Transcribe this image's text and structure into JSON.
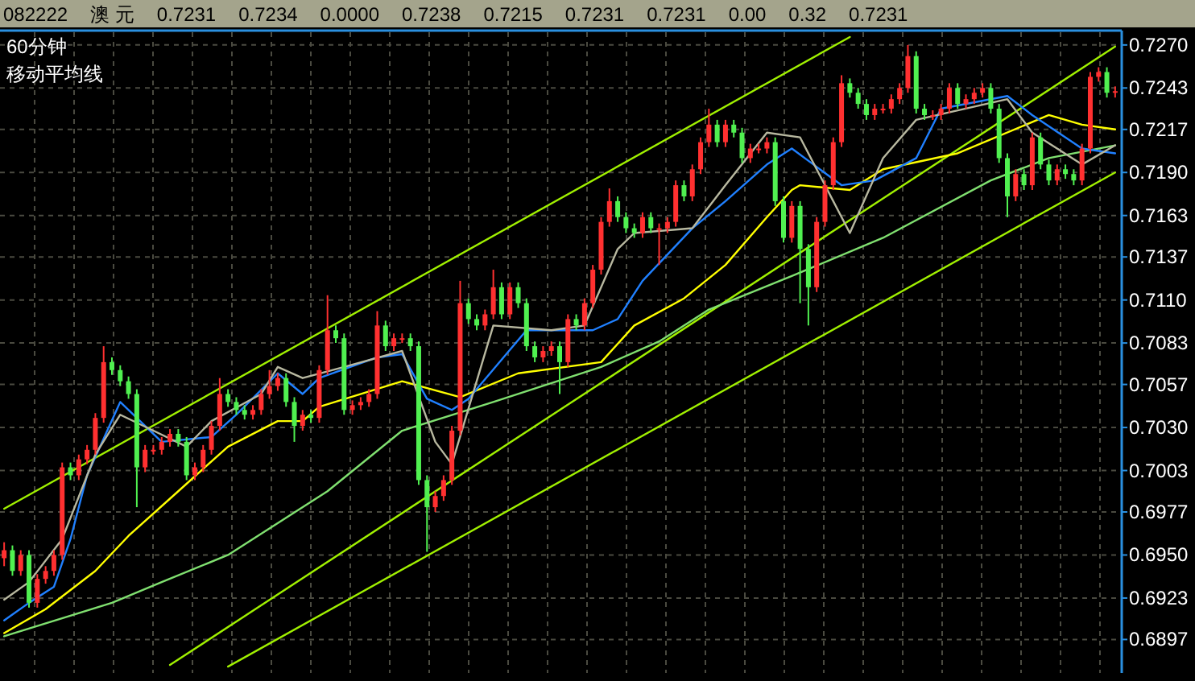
{
  "chart_data": {
    "type": "candlestick",
    "title": "60分钟",
    "subtitle": "移动平均线",
    "annotations": [
      "082222",
      "澳 元",
      "0.7231",
      "0.7234",
      "0.0000",
      "0.7238",
      "0.7215",
      "0.7231",
      "0.7231",
      "0.00",
      "0.32",
      "0.7231"
    ],
    "categories": [
      null,
      null,
      null,
      null,
      null,
      null,
      null,
      null,
      null,
      null,
      null,
      null,
      null,
      null,
      null,
      null,
      null,
      null,
      null,
      null,
      null,
      null,
      null,
      null,
      null,
      null,
      null,
      null,
      null,
      null,
      null,
      null,
      null,
      null,
      null,
      null,
      null,
      null,
      null,
      null,
      null,
      null,
      null,
      null,
      null,
      null,
      null,
      null,
      null,
      null,
      null,
      null,
      null,
      null,
      null,
      null,
      null,
      null,
      null,
      null,
      null,
      null,
      null,
      null,
      null,
      null,
      null,
      null,
      null,
      null,
      null,
      null,
      null,
      null,
      null,
      null,
      null,
      null,
      null,
      null,
      null,
      null,
      null,
      null,
      null,
      null,
      null,
      null,
      null,
      null,
      null,
      null,
      null,
      null,
      null,
      null,
      null,
      null,
      null,
      null,
      null,
      null,
      null,
      null,
      null,
      null,
      null,
      null,
      null,
      null,
      null,
      null,
      null,
      null,
      null,
      null,
      null,
      null,
      null,
      null,
      null,
      null,
      null,
      null,
      null,
      null,
      null,
      null,
      null,
      null,
      null,
      null,
      null,
      null,
      null
    ],
    "ohlc": [
      [
        0.6948,
        0.6958,
        0.6943,
        0.6953
      ],
      [
        0.6953,
        0.6956,
        0.6937,
        0.694
      ],
      [
        0.694,
        0.6953,
        0.6937,
        0.695
      ],
      [
        0.695,
        0.6953,
        0.6917,
        0.692
      ],
      [
        0.692,
        0.6938,
        0.6917,
        0.6935
      ],
      [
        0.6935,
        0.6943,
        0.6932,
        0.694
      ],
      [
        0.694,
        0.6953,
        0.6937,
        0.695
      ],
      [
        0.695,
        0.7008,
        0.6947,
        0.7005
      ],
      [
        0.7005,
        0.7008,
        0.6997,
        0.7
      ],
      [
        0.7,
        0.7013,
        0.6997,
        0.701
      ],
      [
        0.701,
        0.7019,
        0.7007,
        0.7016
      ],
      [
        0.7016,
        0.7039,
        0.7013,
        0.7036
      ],
      [
        0.7036,
        0.7081,
        0.7033,
        0.7071
      ],
      [
        0.7071,
        0.7074,
        0.7063,
        0.7066
      ],
      [
        0.7066,
        0.7069,
        0.7056,
        0.7059
      ],
      [
        0.7059,
        0.7062,
        0.7048,
        0.7051
      ],
      [
        0.7051,
        0.7054,
        0.698,
        0.7005
      ],
      [
        0.7005,
        0.7019,
        0.7002,
        0.7016
      ],
      [
        0.7016,
        0.7019,
        0.7013,
        0.7016
      ],
      [
        0.7016,
        0.7024,
        0.7013,
        0.7021
      ],
      [
        0.7021,
        0.7029,
        0.7018,
        0.7026
      ],
      [
        0.7026,
        0.7029,
        0.7018,
        0.7021
      ],
      [
        0.7021,
        0.7024,
        0.6997,
        0.7
      ],
      [
        0.7,
        0.7008,
        0.6997,
        0.7005
      ],
      [
        0.7005,
        0.7019,
        0.7002,
        0.7016
      ],
      [
        0.7016,
        0.7034,
        0.7013,
        0.7031
      ],
      [
        0.7031,
        0.7061,
        0.7028,
        0.7051
      ],
      [
        0.7051,
        0.7054,
        0.7043,
        0.7046
      ],
      [
        0.7046,
        0.7049,
        0.7038,
        0.7041
      ],
      [
        0.7041,
        0.7044,
        0.7035,
        0.7038
      ],
      [
        0.7038,
        0.7044,
        0.7035,
        0.7041
      ],
      [
        0.7041,
        0.7054,
        0.7038,
        0.7051
      ],
      [
        0.7051,
        0.7066,
        0.7048,
        0.7056
      ],
      [
        0.7056,
        0.7064,
        0.7053,
        0.7061
      ],
      [
        0.7061,
        0.7064,
        0.7043,
        0.7046
      ],
      [
        0.7046,
        0.7049,
        0.7021,
        0.7031
      ],
      [
        0.7031,
        0.7041,
        0.7028,
        0.7038
      ],
      [
        0.7038,
        0.7041,
        0.7033,
        0.7036
      ],
      [
        0.7036,
        0.7069,
        0.7033,
        0.7066
      ],
      [
        0.7066,
        0.7113,
        0.7063,
        0.7091
      ],
      [
        0.7091,
        0.7094,
        0.7083,
        0.7086
      ],
      [
        0.7086,
        0.7089,
        0.7038,
        0.7041
      ],
      [
        0.7041,
        0.7047,
        0.7038,
        0.7044
      ],
      [
        0.7044,
        0.7049,
        0.7041,
        0.7046
      ],
      [
        0.7046,
        0.7054,
        0.7043,
        0.7051
      ],
      [
        0.7051,
        0.7103,
        0.7048,
        0.7094
      ],
      [
        0.7094,
        0.7097,
        0.7078,
        0.7081
      ],
      [
        0.7081,
        0.7089,
        0.7078,
        0.7086
      ],
      [
        0.7086,
        0.7089,
        0.7083,
        0.7086
      ],
      [
        0.7086,
        0.7089,
        0.7078,
        0.7081
      ],
      [
        0.7081,
        0.7084,
        0.6994,
        0.6997
      ],
      [
        0.6997,
        0.7,
        0.6952,
        0.698
      ],
      [
        0.698,
        0.699,
        0.6977,
        0.6987
      ],
      [
        0.6987,
        0.7,
        0.6984,
        0.6997
      ],
      [
        0.6997,
        0.7031,
        0.6994,
        0.7028
      ],
      [
        0.7028,
        0.7122,
        0.7025,
        0.7108
      ],
      [
        0.7108,
        0.7111,
        0.7095,
        0.7098
      ],
      [
        0.7098,
        0.7101,
        0.7091,
        0.7094
      ],
      [
        0.7094,
        0.7104,
        0.7091,
        0.7101
      ],
      [
        0.7101,
        0.7129,
        0.7098,
        0.7118
      ],
      [
        0.7118,
        0.7121,
        0.7098,
        0.7101
      ],
      [
        0.7101,
        0.7121,
        0.7098,
        0.7118
      ],
      [
        0.7118,
        0.7121,
        0.7105,
        0.7108
      ],
      [
        0.7108,
        0.7111,
        0.7078,
        0.7081
      ],
      [
        0.7081,
        0.7084,
        0.7071,
        0.7074
      ],
      [
        0.7074,
        0.7081,
        0.7071,
        0.7078
      ],
      [
        0.7078,
        0.7084,
        0.7075,
        0.7081
      ],
      [
        0.7081,
        0.7084,
        0.7051,
        0.7071
      ],
      [
        0.7071,
        0.7101,
        0.7068,
        0.7098
      ],
      [
        0.7098,
        0.7101,
        0.7091,
        0.7094
      ],
      [
        0.7094,
        0.7111,
        0.7091,
        0.7108
      ],
      [
        0.7108,
        0.7132,
        0.7105,
        0.7129
      ],
      [
        0.7129,
        0.7162,
        0.7126,
        0.7159
      ],
      [
        0.7159,
        0.718,
        0.7156,
        0.7172
      ],
      [
        0.7172,
        0.7175,
        0.7159,
        0.7162
      ],
      [
        0.7162,
        0.7165,
        0.7152,
        0.7155
      ],
      [
        0.7155,
        0.7158,
        0.7149,
        0.7152
      ],
      [
        0.7152,
        0.7165,
        0.7149,
        0.7162
      ],
      [
        0.7162,
        0.7165,
        0.7152,
        0.7155
      ],
      [
        0.7155,
        0.7158,
        0.7132,
        0.7155
      ],
      [
        0.7155,
        0.7162,
        0.7152,
        0.7159
      ],
      [
        0.7159,
        0.7185,
        0.7156,
        0.7182
      ],
      [
        0.7182,
        0.7185,
        0.7172,
        0.7175
      ],
      [
        0.7175,
        0.7195,
        0.7172,
        0.7192
      ],
      [
        0.7192,
        0.7212,
        0.7189,
        0.7209
      ],
      [
        0.7209,
        0.723,
        0.7206,
        0.722
      ],
      [
        0.722,
        0.7223,
        0.7206,
        0.7209
      ],
      [
        0.7209,
        0.7223,
        0.7206,
        0.722
      ],
      [
        0.722,
        0.7223,
        0.7212,
        0.7215
      ],
      [
        0.7215,
        0.7218,
        0.7196,
        0.7199
      ],
      [
        0.7199,
        0.7208,
        0.7196,
        0.7205
      ],
      [
        0.7205,
        0.7208,
        0.7202,
        0.7205
      ],
      [
        0.7205,
        0.7212,
        0.7202,
        0.7209
      ],
      [
        0.7209,
        0.7212,
        0.7169,
        0.7172
      ],
      [
        0.7172,
        0.7175,
        0.7146,
        0.7149
      ],
      [
        0.7149,
        0.7172,
        0.7146,
        0.7169
      ],
      [
        0.7169,
        0.7172,
        0.7108,
        0.7142
      ],
      [
        0.7142,
        0.7145,
        0.7094,
        0.7118
      ],
      [
        0.7118,
        0.7162,
        0.7115,
        0.7159
      ],
      [
        0.7159,
        0.7185,
        0.7156,
        0.7182
      ],
      [
        0.7182,
        0.7212,
        0.7179,
        0.7209
      ],
      [
        0.7209,
        0.7251,
        0.7206,
        0.7246
      ],
      [
        0.7246,
        0.7249,
        0.7237,
        0.724
      ],
      [
        0.724,
        0.7243,
        0.723,
        0.7233
      ],
      [
        0.7233,
        0.7236,
        0.7223,
        0.7226
      ],
      [
        0.7226,
        0.7233,
        0.7223,
        0.723
      ],
      [
        0.723,
        0.7233,
        0.7227,
        0.723
      ],
      [
        0.723,
        0.7239,
        0.7227,
        0.7236
      ],
      [
        0.7236,
        0.7246,
        0.7233,
        0.7243
      ],
      [
        0.7243,
        0.727,
        0.724,
        0.7263
      ],
      [
        0.7263,
        0.7266,
        0.7227,
        0.723
      ],
      [
        0.723,
        0.7233,
        0.7223,
        0.7226
      ],
      [
        0.7226,
        0.7229,
        0.7223,
        0.7226
      ],
      [
        0.7226,
        0.7233,
        0.7223,
        0.723
      ],
      [
        0.723,
        0.7246,
        0.7227,
        0.7243
      ],
      [
        0.7243,
        0.7246,
        0.723,
        0.7233
      ],
      [
        0.7233,
        0.7239,
        0.723,
        0.7236
      ],
      [
        0.7236,
        0.7243,
        0.7233,
        0.724
      ],
      [
        0.724,
        0.7246,
        0.7237,
        0.7243
      ],
      [
        0.7243,
        0.7246,
        0.7227,
        0.723
      ],
      [
        0.723,
        0.7233,
        0.7196,
        0.7199
      ],
      [
        0.7199,
        0.7202,
        0.7162,
        0.7175
      ],
      [
        0.7175,
        0.7192,
        0.7172,
        0.7189
      ],
      [
        0.7189,
        0.7192,
        0.7179,
        0.7182
      ],
      [
        0.7182,
        0.7215,
        0.7179,
        0.7212
      ],
      [
        0.7212,
        0.7215,
        0.7192,
        0.7195
      ],
      [
        0.7195,
        0.7198,
        0.7182,
        0.7185
      ],
      [
        0.7185,
        0.7195,
        0.7182,
        0.7192
      ],
      [
        0.7192,
        0.7195,
        0.7186,
        0.7189
      ],
      [
        0.7189,
        0.7192,
        0.7182,
        0.7185
      ],
      [
        0.7185,
        0.7208,
        0.7182,
        0.7205
      ],
      [
        0.7205,
        0.7253,
        0.7202,
        0.725
      ],
      [
        0.725,
        0.7256,
        0.7247,
        0.7253
      ],
      [
        0.7253,
        0.7256,
        0.7237,
        0.724
      ],
      [
        0.724,
        0.7244,
        0.7237,
        0.7241
      ]
    ],
    "colors": [
      "#ff3030",
      "#50f050",
      "#ff3030",
      "#50f050",
      "#ff3030",
      "#ff3030",
      "#ff3030",
      "#ff3030",
      "#50f050",
      "#ff3030",
      "#ff3030",
      "#ff3030",
      "#ff3030",
      "#50f050",
      "#50f050",
      "#50f050",
      "#50f050",
      "#ff3030",
      "#ff3030",
      "#ff3030",
      "#ff3030",
      "#50f050",
      "#50f050",
      "#ff3030",
      "#ff3030",
      "#ff3030",
      "#ff3030",
      "#50f050",
      "#50f050",
      "#50f050",
      "#ff3030",
      "#ff3030",
      "#ff3030",
      "#ff3030",
      "#50f050",
      "#50f050",
      "#ff3030",
      "#50f050",
      "#ff3030",
      "#ff3030",
      "#50f050",
      "#50f050",
      "#ff3030",
      "#ff3030",
      "#ff3030",
      "#ff3030",
      "#50f050",
      "#ff3030",
      "#ff3030",
      "#50f050",
      "#50f050",
      "#50f050",
      "#ff3030",
      "#ff3030",
      "#ff3030",
      "#ff3030",
      "#50f050",
      "#50f050",
      "#ff3030",
      "#ff3030",
      "#50f050",
      "#ff3030",
      "#50f050",
      "#50f050",
      "#50f050",
      "#ff3030",
      "#ff3030",
      "#50f050",
      "#ff3030",
      "#50f050",
      "#ff3030",
      "#ff3030",
      "#ff3030",
      "#ff3030",
      "#50f050",
      "#50f050",
      "#50f050",
      "#ff3030",
      "#50f050",
      "#ff3030",
      "#ff3030",
      "#ff3030",
      "#50f050",
      "#ff3030",
      "#ff3030",
      "#ff3030",
      "#50f050",
      "#ff3030",
      "#50f050",
      "#50f050",
      "#ff3030",
      "#ff3030",
      "#ff3030",
      "#50f050",
      "#50f050",
      "#ff3030",
      "#50f050",
      "#50f050",
      "#ff3030",
      "#ff3030",
      "#ff3030",
      "#ff3030",
      "#50f050",
      "#50f050",
      "#50f050",
      "#ff3030",
      "#ff3030",
      "#ff3030",
      "#ff3030",
      "#ff3030",
      "#50f050",
      "#50f050",
      "#ff3030",
      "#ff3030",
      "#ff3030",
      "#50f050",
      "#ff3030",
      "#ff3030",
      "#ff3030",
      "#50f050",
      "#50f050",
      "#50f050",
      "#ff3030",
      "#50f050",
      "#ff3030",
      "#50f050",
      "#50f050",
      "#ff3030",
      "#50f050",
      "#50f050",
      "#ff3030",
      "#ff3030",
      "#ff3030",
      "#50f050",
      "#ff3030"
    ],
    "series": [
      {
        "type": "line",
        "color": "#a0f000",
        "values": [
          0.6979,
          null,
          null,
          null,
          null,
          null,
          null,
          null,
          null,
          null,
          null,
          null,
          null,
          null,
          null,
          null,
          null,
          null,
          null,
          null,
          null,
          null,
          null,
          null,
          null,
          null,
          null,
          null,
          null,
          null,
          null,
          null,
          null,
          null,
          null,
          null,
          null,
          null,
          null,
          null,
          null,
          null,
          null,
          null,
          null,
          null,
          null,
          null,
          null,
          null,
          null,
          null,
          null,
          null,
          null,
          null,
          null,
          null,
          null,
          null,
          null,
          null,
          null,
          null,
          null,
          null,
          null,
          null,
          null,
          null,
          null,
          null,
          null,
          null,
          null,
          null,
          null,
          null,
          null,
          null,
          null,
          null,
          null,
          null,
          null,
          null,
          null,
          null,
          null,
          null,
          null,
          null,
          null,
          null,
          null,
          null,
          null,
          null,
          null,
          null,
          null,
          null,
          0.7275,
          null,
          null,
          null,
          null,
          null,
          null,
          null,
          null,
          null,
          null,
          null,
          null,
          null,
          null,
          null,
          null,
          null,
          null,
          null,
          null,
          null,
          null,
          null,
          null,
          null,
          null,
          null,
          null,
          null,
          null,
          null,
          null
        ]
      },
      {
        "type": "line",
        "color": "#a0f000",
        "values": [
          null,
          null,
          null,
          null,
          null,
          null,
          null,
          null,
          null,
          null,
          null,
          null,
          null,
          null,
          null,
          null,
          null,
          null,
          null,
          null,
          0.6881,
          null,
          null,
          null,
          null,
          null,
          null,
          null,
          null,
          null,
          null,
          null,
          null,
          null,
          null,
          null,
          null,
          null,
          null,
          null,
          null,
          null,
          null,
          null,
          null,
          null,
          null,
          null,
          null,
          null,
          null,
          null,
          null,
          null,
          null,
          null,
          null,
          null,
          null,
          null,
          null,
          null,
          null,
          null,
          null,
          null,
          null,
          null,
          null,
          null,
          null,
          null,
          null,
          null,
          null,
          null,
          null,
          null,
          null,
          null,
          null,
          null,
          null,
          null,
          null,
          null,
          null,
          null,
          null,
          null,
          null,
          null,
          null,
          null,
          null,
          null,
          null,
          null,
          null,
          null,
          null,
          null,
          null,
          null,
          null,
          null,
          null,
          null,
          null,
          null,
          null,
          null,
          null,
          null,
          null,
          null,
          null,
          null,
          null,
          null,
          null,
          null,
          null,
          null,
          null,
          null,
          null,
          null,
          null,
          null,
          null,
          null,
          null,
          null,
          0.7269
        ]
      },
      {
        "type": "line",
        "color": "#a0f000",
        "values": [
          null,
          null,
          null,
          null,
          null,
          null,
          null,
          null,
          null,
          null,
          null,
          null,
          null,
          null,
          null,
          null,
          null,
          null,
          null,
          null,
          null,
          null,
          null,
          null,
          null,
          null,
          null,
          0.688,
          null,
          null,
          null,
          null,
          null,
          null,
          null,
          null,
          null,
          null,
          null,
          null,
          null,
          null,
          null,
          null,
          null,
          null,
          null,
          null,
          null,
          null,
          null,
          null,
          null,
          null,
          null,
          null,
          null,
          null,
          null,
          null,
          null,
          null,
          null,
          null,
          null,
          null,
          null,
          null,
          null,
          null,
          null,
          null,
          null,
          null,
          null,
          null,
          null,
          null,
          null,
          null,
          null,
          null,
          null,
          null,
          null,
          null,
          null,
          null,
          null,
          null,
          null,
          null,
          null,
          null,
          null,
          null,
          null,
          null,
          null,
          null,
          null,
          null,
          null,
          null,
          null,
          null,
          null,
          null,
          null,
          null,
          null,
          null,
          null,
          null,
          null,
          null,
          null,
          null,
          null,
          null,
          null,
          null,
          null,
          null,
          null,
          null,
          null,
          null,
          null,
          null,
          null,
          null,
          null,
          null,
          0.719
        ]
      },
      {
        "type": "line",
        "color": "#80e070",
        "values": [
          0.6899,
          null,
          null,
          null,
          null,
          null,
          null,
          null,
          null,
          null,
          null,
          null,
          null,
          0.692,
          null,
          null,
          null,
          null,
          null,
          0.6933,
          null,
          null,
          null,
          null,
          null,
          null,
          null,
          0.695,
          null,
          null,
          null,
          null,
          null,
          null,
          null,
          null,
          null,
          null,
          null,
          0.699,
          null,
          null,
          null,
          null,
          null,
          null,
          null,
          null,
          0.7028,
          null,
          null,
          null,
          null,
          null,
          null,
          null,
          null,
          null,
          null,
          0.7046,
          null,
          null,
          null,
          null,
          null,
          null,
          null,
          null,
          null,
          null,
          null,
          null,
          0.7068,
          null,
          null,
          null,
          null,
          null,
          null,
          0.7084,
          null,
          null,
          null,
          null,
          null,
          0.7104,
          null,
          null,
          null,
          null,
          null,
          null,
          null,
          null,
          null,
          0.7125,
          null,
          null,
          null,
          null,
          null,
          null,
          null,
          null,
          null,
          null,
          0.7149,
          null,
          null,
          null,
          null,
          null,
          null,
          null,
          null,
          null,
          null,
          null,
          null,
          0.7185,
          null,
          null,
          null,
          null,
          null,
          null,
          0.7199,
          null,
          null,
          null,
          null,
          null,
          null,
          null,
          0.7207
        ]
      },
      {
        "type": "line",
        "color": "#ffff00",
        "values": [
          0.6901,
          null,
          null,
          null,
          null,
          0.6916,
          null,
          null,
          null,
          null,
          null,
          0.694,
          null,
          null,
          null,
          0.6962,
          null,
          null,
          null,
          null,
          null,
          0.699,
          null,
          null,
          null,
          null,
          null,
          0.7018,
          null,
          null,
          null,
          null,
          null,
          0.7034,
          null,
          null,
          0.7034,
          null,
          0.7043,
          null,
          null,
          null,
          null,
          null,
          null,
          null,
          null,
          null,
          0.7059,
          null,
          null,
          null,
          null,
          null,
          null,
          0.7049,
          null,
          null,
          null,
          null,
          null,
          null,
          0.7064,
          null,
          null,
          null,
          null,
          null,
          null,
          null,
          null,
          null,
          0.7071,
          null,
          null,
          null,
          0.7094,
          null,
          null,
          null,
          null,
          null,
          0.7111,
          null,
          null,
          null,
          null,
          0.7132,
          null,
          null,
          null,
          null,
          0.7162,
          null,
          null,
          0.7179,
          0.7182,
          null,
          null,
          null,
          null,
          null,
          0.7179,
          null,
          null,
          null,
          0.7192,
          null,
          null,
          null,
          null,
          null,
          null,
          null,
          null,
          0.7202,
          null,
          null,
          null,
          null,
          null,
          null,
          null,
          null,
          null,
          null,
          0.7226,
          null,
          null,
          null,
          0.722,
          null,
          null,
          null,
          0.7217
        ]
      },
      {
        "type": "line",
        "color": "#2080ff",
        "values": [
          0.6909,
          null,
          null,
          0.692,
          null,
          null,
          0.693,
          null,
          0.696,
          null,
          0.7,
          null,
          null,
          null,
          0.7046,
          null,
          null,
          null,
          null,
          0.7021,
          null,
          null,
          null,
          null,
          null,
          0.7024,
          null,
          null,
          0.7038,
          null,
          null,
          null,
          null,
          0.7064,
          null,
          null,
          0.7051,
          null,
          0.7061,
          null,
          null,
          null,
          null,
          null,
          null,
          0.7074,
          null,
          null,
          0.7076,
          null,
          null,
          0.7048,
          null,
          null,
          0.7041,
          null,
          0.7048,
          null,
          null,
          null,
          null,
          null,
          null,
          0.7091,
          null,
          null,
          null,
          null,
          null,
          null,
          null,
          0.7091,
          null,
          null,
          0.7098,
          null,
          null,
          0.7122,
          null,
          null,
          null,
          null,
          null,
          0.7155,
          null,
          null,
          null,
          0.7172,
          null,
          null,
          null,
          null,
          0.7195,
          null,
          null,
          0.7205,
          null,
          null,
          null,
          null,
          null,
          0.7182,
          null,
          null,
          null,
          0.7185,
          null,
          null,
          null,
          null,
          0.7199,
          null,
          null,
          0.723,
          null,
          null,
          null,
          null,
          null,
          null,
          null,
          0.7238,
          null,
          null,
          0.7226,
          null,
          null,
          null,
          null,
          null,
          0.7205,
          null,
          null,
          null,
          0.7202
        ]
      },
      {
        "type": "line",
        "color": "#b8b8a0",
        "values": [
          0.6922,
          null,
          null,
          0.6933,
          null,
          null,
          null,
          0.696,
          null,
          null,
          null,
          0.7013,
          null,
          null,
          0.7038,
          null,
          null,
          null,
          0.7028,
          null,
          null,
          null,
          0.7018,
          null,
          null,
          0.7034,
          null,
          null,
          null,
          null,
          null,
          0.7051,
          null,
          0.7068,
          null,
          null,
          0.7061,
          null,
          null,
          null,
          null,
          0.7068,
          null,
          null,
          null,
          null,
          null,
          null,
          0.7078,
          null,
          null,
          null,
          0.7021,
          null,
          0.7007,
          null,
          null,
          null,
          null,
          0.7094,
          null,
          null,
          null,
          null,
          null,
          null,
          0.7091,
          null,
          null,
          null,
          0.7094,
          null,
          null,
          null,
          0.7142,
          null,
          0.7152,
          null,
          null,
          null,
          null,
          null,
          null,
          0.7155,
          null,
          null,
          null,
          0.7182,
          null,
          null,
          null,
          null,
          0.7215,
          null,
          null,
          null,
          0.7212,
          null,
          null,
          null,
          0.7172,
          null,
          0.7152,
          null,
          null,
          null,
          0.7199,
          null,
          null,
          null,
          0.7223,
          null,
          null,
          null,
          null,
          null,
          null,
          null,
          null,
          null,
          null,
          0.7236,
          null,
          null,
          0.7215,
          null,
          null,
          null,
          null,
          null,
          0.7195,
          null,
          null,
          null,
          0.7207
        ]
      }
    ],
    "ylim": [
      0.6876,
      0.7278
    ],
    "yticks": [
      {
        "value": 0.727,
        "label": "0.7270"
      },
      0.7243,
      0.7217,
      {
        "value": 0.719,
        "label": "0.7190"
      },
      0.7163,
      0.7137,
      {
        "value": 0.711,
        "label": "0.7110"
      },
      0.7083,
      0.7057,
      {
        "value": 0.703,
        "label": "0.7030"
      },
      0.7003,
      0.6977,
      {
        "value": 0.695,
        "label": "0.6950"
      },
      0.6923,
      0.6897
    ],
    "grid": true,
    "tick_labels": "y"
  }
}
